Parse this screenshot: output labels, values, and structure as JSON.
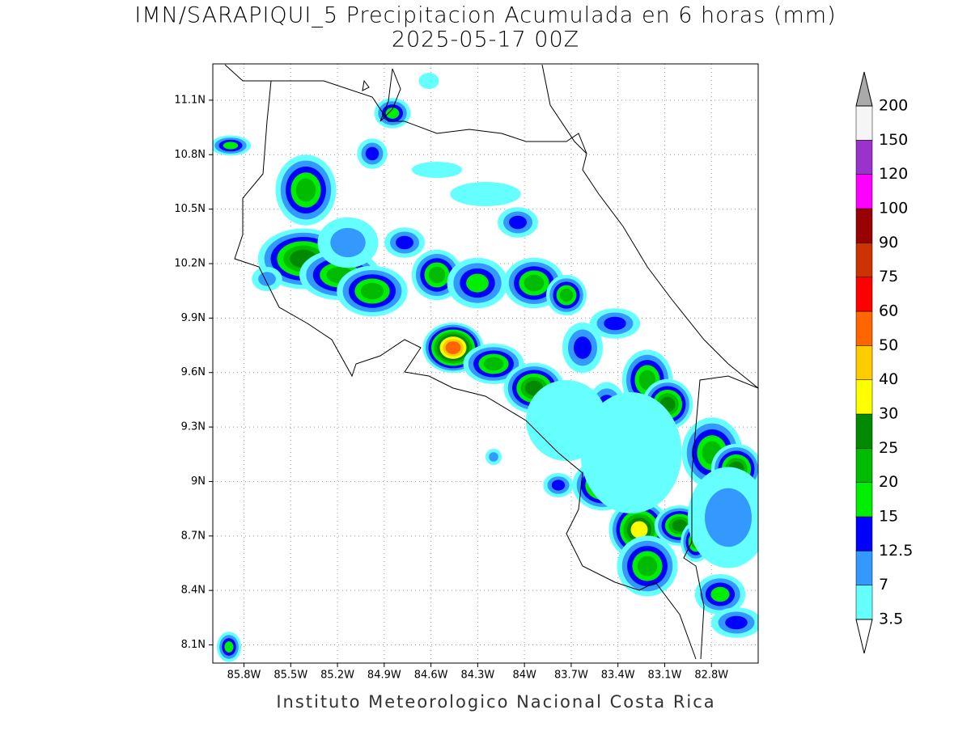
{
  "title": "IMN/SARAPIQUI_5 Precipitacion Acumulada en 6 horas (mm)",
  "subtitle": "2025-05-17 00Z",
  "footer": "Instituto Meteorologico Nacional Costa Rica",
  "map": {
    "xlim": [
      -86.0,
      -82.5
    ],
    "ylim": [
      8.0,
      11.3
    ],
    "grid": true,
    "xticks": [
      {
        "value": -85.8,
        "label": "85.8W"
      },
      {
        "value": -85.5,
        "label": "85.5W"
      },
      {
        "value": -85.2,
        "label": "85.2W"
      },
      {
        "value": -84.9,
        "label": "84.9W"
      },
      {
        "value": -84.6,
        "label": "84.6W"
      },
      {
        "value": -84.3,
        "label": "84.3W"
      },
      {
        "value": -84.0,
        "label": "84W"
      },
      {
        "value": -83.7,
        "label": "83.7W"
      },
      {
        "value": -83.4,
        "label": "83.4W"
      },
      {
        "value": -83.1,
        "label": "83.1W"
      },
      {
        "value": -82.8,
        "label": "82.8W"
      }
    ],
    "yticks": [
      {
        "value": 8.1,
        "label": "8.1N"
      },
      {
        "value": 8.4,
        "label": "8.4N"
      },
      {
        "value": 8.7,
        "label": "8.7N"
      },
      {
        "value": 9.0,
        "label": "9N"
      },
      {
        "value": 9.3,
        "label": "9.3N"
      },
      {
        "value": 9.6,
        "label": "9.6N"
      },
      {
        "value": 9.9,
        "label": "9.9N"
      },
      {
        "value": 10.2,
        "label": "10.2N"
      },
      {
        "value": 10.5,
        "label": "10.5N"
      },
      {
        "value": 10.8,
        "label": "10.8N"
      },
      {
        "value": 11.1,
        "label": "11.1N"
      }
    ]
  },
  "colorbar": {
    "levels": [
      3.5,
      7,
      12.5,
      15,
      20,
      25,
      30,
      40,
      50,
      60,
      75,
      90,
      100,
      120,
      150,
      200
    ],
    "colors": [
      "#66ffff",
      "#3399ff",
      "#0000ff",
      "#00ee00",
      "#00bb00",
      "#008a00",
      "#ffff00",
      "#ffcc00",
      "#ff6600",
      "#ff0000",
      "#cc3300",
      "#990000",
      "#ff00ff",
      "#9933cc",
      "#f5f5f5"
    ],
    "under_color": "#ffffff",
    "over_color": "#aaaaaa"
  }
}
